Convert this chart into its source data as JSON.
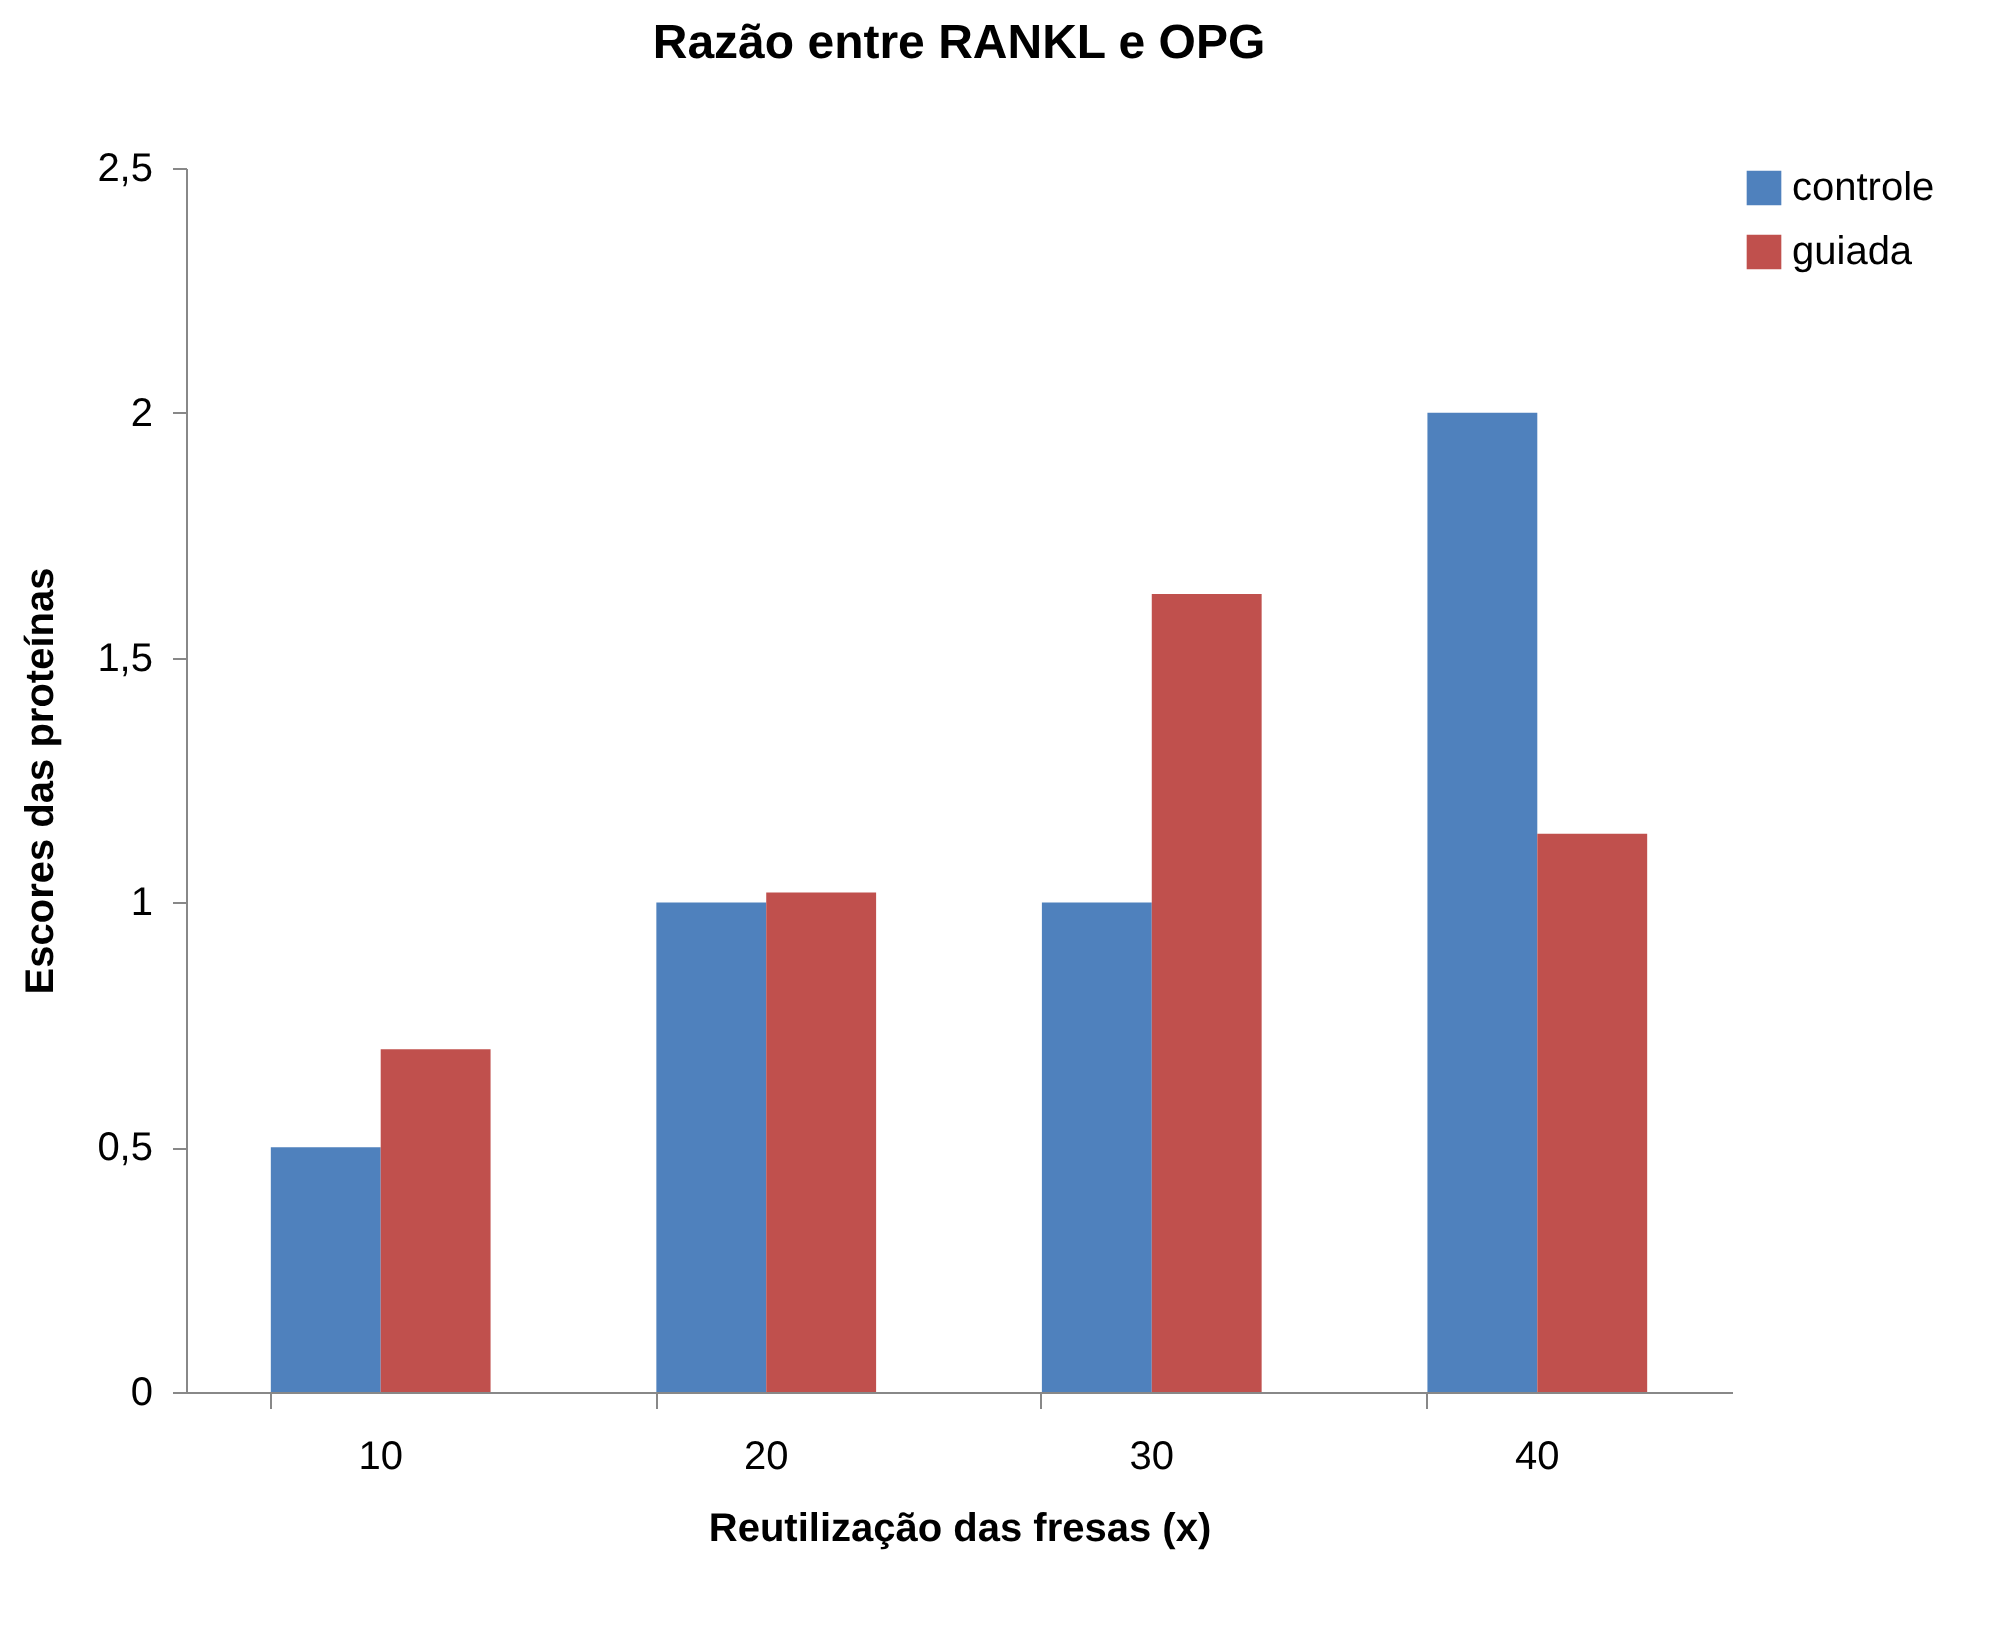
{
  "chart_data": {
    "type": "bar",
    "title": "Razão entre RANKL e OPG",
    "xlabel": "Reutilização das fresas (x)",
    "ylabel": "Escores das proteínas",
    "categories": [
      "10",
      "20",
      "30",
      "40"
    ],
    "series": [
      {
        "name": "controle",
        "color": "#4f81bd",
        "values": [
          0.5,
          1.0,
          1.0,
          2.0
        ]
      },
      {
        "name": "guiada",
        "color": "#c0504d",
        "values": [
          0.7,
          1.02,
          1.63,
          1.14
        ]
      }
    ],
    "ylim": [
      0,
      2.5
    ],
    "yticks": [
      0,
      {
        "value": 0.5,
        "label": "0,5"
      },
      1,
      {
        "value": 1.5,
        "label": "1,5"
      },
      2,
      {
        "value": 2.5,
        "label": "2,5"
      }
    ],
    "grid": false,
    "legend": "right"
  }
}
